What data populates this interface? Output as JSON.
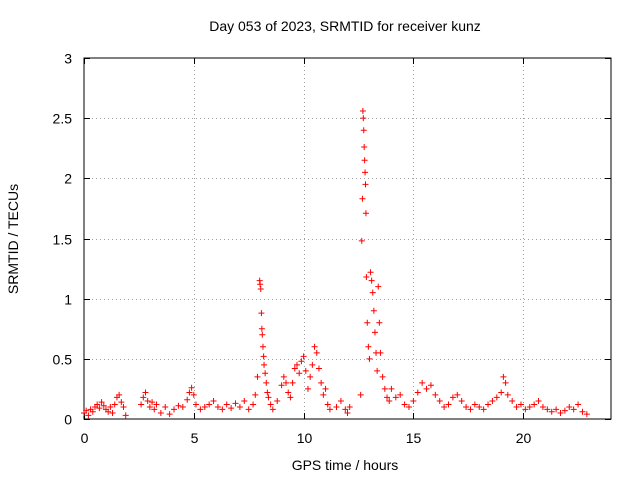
{
  "chart_data": {
    "type": "scatter",
    "title": "Day 053 of 2023, SRMTID for receiver kunz",
    "xlabel": "GPS time / hours",
    "ylabel": "SRMTID / TECUs",
    "xlim": [
      0,
      24
    ],
    "ylim": [
      0,
      3
    ],
    "xticks": [
      0,
      5,
      10,
      15,
      20
    ],
    "yticks": [
      0,
      0.5,
      1,
      1.5,
      2,
      2.5,
      3
    ],
    "xtick_labels": [
      "0",
      "5",
      "10",
      "15",
      "20"
    ],
    "ytick_labels": [
      "0",
      "0.5",
      "1",
      "1.5",
      "2",
      "2.5",
      "3"
    ],
    "grid": true,
    "marker": "+",
    "color": "#ff0000",
    "series": [
      {
        "name": "SRMTID",
        "points": [
          [
            0.0,
            0.05
          ],
          [
            0.1,
            0.07
          ],
          [
            0.2,
            0.03
          ],
          [
            0.3,
            0.08
          ],
          [
            0.4,
            0.06
          ],
          [
            0.5,
            0.1
          ],
          [
            0.6,
            0.12
          ],
          [
            0.7,
            0.09
          ],
          [
            0.8,
            0.14
          ],
          [
            0.9,
            0.11
          ],
          [
            1.0,
            0.08
          ],
          [
            1.1,
            0.06
          ],
          [
            1.2,
            0.1
          ],
          [
            1.3,
            0.05
          ],
          [
            1.4,
            0.12
          ],
          [
            1.5,
            0.18
          ],
          [
            1.6,
            0.2
          ],
          [
            1.7,
            0.14
          ],
          [
            1.8,
            0.1
          ],
          [
            1.9,
            0.03
          ],
          [
            2.6,
            0.12
          ],
          [
            2.7,
            0.18
          ],
          [
            2.8,
            0.22
          ],
          [
            2.9,
            0.15
          ],
          [
            3.0,
            0.1
          ],
          [
            3.1,
            0.14
          ],
          [
            3.2,
            0.08
          ],
          [
            3.3,
            0.12
          ],
          [
            3.5,
            0.05
          ],
          [
            3.7,
            0.1
          ],
          [
            3.9,
            0.04
          ],
          [
            4.1,
            0.08
          ],
          [
            4.3,
            0.11
          ],
          [
            4.5,
            0.1
          ],
          [
            4.7,
            0.16
          ],
          [
            4.8,
            0.22
          ],
          [
            4.9,
            0.26
          ],
          [
            5.0,
            0.2
          ],
          [
            5.1,
            0.12
          ],
          [
            5.3,
            0.08
          ],
          [
            5.5,
            0.1
          ],
          [
            5.7,
            0.12
          ],
          [
            5.9,
            0.15
          ],
          [
            6.1,
            0.1
          ],
          [
            6.3,
            0.08
          ],
          [
            6.5,
            0.12
          ],
          [
            6.7,
            0.09
          ],
          [
            6.9,
            0.13
          ],
          [
            7.1,
            0.1
          ],
          [
            7.3,
            0.15
          ],
          [
            7.5,
            0.08
          ],
          [
            7.7,
            0.12
          ],
          [
            7.8,
            0.2
          ],
          [
            7.9,
            0.35
          ],
          [
            8.0,
            1.15
          ],
          [
            8.02,
            1.12
          ],
          [
            8.05,
            1.08
          ],
          [
            8.08,
            0.88
          ],
          [
            8.1,
            0.75
          ],
          [
            8.12,
            0.7
          ],
          [
            8.15,
            0.6
          ],
          [
            8.18,
            0.52
          ],
          [
            8.2,
            0.45
          ],
          [
            8.25,
            0.38
          ],
          [
            8.3,
            0.3
          ],
          [
            8.35,
            0.22
          ],
          [
            8.4,
            0.18
          ],
          [
            8.5,
            0.12
          ],
          [
            8.6,
            0.08
          ],
          [
            8.8,
            0.15
          ],
          [
            9.0,
            0.28
          ],
          [
            9.1,
            0.35
          ],
          [
            9.2,
            0.3
          ],
          [
            9.3,
            0.22
          ],
          [
            9.4,
            0.18
          ],
          [
            9.5,
            0.3
          ],
          [
            9.6,
            0.42
          ],
          [
            9.7,
            0.45
          ],
          [
            9.8,
            0.38
          ],
          [
            9.9,
            0.48
          ],
          [
            10.0,
            0.52
          ],
          [
            10.1,
            0.4
          ],
          [
            10.2,
            0.25
          ],
          [
            10.3,
            0.35
          ],
          [
            10.4,
            0.45
          ],
          [
            10.5,
            0.6
          ],
          [
            10.6,
            0.55
          ],
          [
            10.7,
            0.42
          ],
          [
            10.8,
            0.3
          ],
          [
            10.9,
            0.2
          ],
          [
            11.0,
            0.25
          ],
          [
            11.1,
            0.12
          ],
          [
            11.2,
            0.08
          ],
          [
            11.5,
            0.1
          ],
          [
            11.7,
            0.15
          ],
          [
            11.9,
            0.08
          ],
          [
            12.0,
            0.05
          ],
          [
            12.1,
            0.1
          ],
          [
            12.6,
            0.2
          ],
          [
            12.65,
            1.48
          ],
          [
            12.68,
            1.83
          ],
          [
            12.7,
            2.56
          ],
          [
            12.72,
            2.5
          ],
          [
            12.74,
            2.4
          ],
          [
            12.76,
            2.26
          ],
          [
            12.78,
            2.15
          ],
          [
            12.8,
            2.05
          ],
          [
            12.82,
            1.95
          ],
          [
            12.84,
            1.71
          ],
          [
            12.86,
            1.18
          ],
          [
            12.9,
            0.8
          ],
          [
            12.95,
            0.6
          ],
          [
            13.0,
            0.5
          ],
          [
            13.05,
            1.22
          ],
          [
            13.1,
            1.15
          ],
          [
            13.15,
            1.05
          ],
          [
            13.2,
            0.9
          ],
          [
            13.25,
            0.72
          ],
          [
            13.3,
            0.55
          ],
          [
            13.35,
            0.4
          ],
          [
            13.4,
            1.1
          ],
          [
            13.45,
            0.8
          ],
          [
            13.5,
            0.55
          ],
          [
            13.6,
            0.35
          ],
          [
            13.7,
            0.25
          ],
          [
            13.8,
            0.18
          ],
          [
            13.9,
            0.15
          ],
          [
            14.0,
            0.25
          ],
          [
            14.2,
            0.18
          ],
          [
            14.4,
            0.2
          ],
          [
            14.6,
            0.12
          ],
          [
            14.8,
            0.1
          ],
          [
            15.0,
            0.15
          ],
          [
            15.2,
            0.22
          ],
          [
            15.4,
            0.3
          ],
          [
            15.6,
            0.25
          ],
          [
            15.8,
            0.28
          ],
          [
            16.0,
            0.2
          ],
          [
            16.2,
            0.15
          ],
          [
            16.4,
            0.1
          ],
          [
            16.6,
            0.12
          ],
          [
            16.8,
            0.18
          ],
          [
            17.0,
            0.2
          ],
          [
            17.2,
            0.15
          ],
          [
            17.4,
            0.1
          ],
          [
            17.6,
            0.08
          ],
          [
            17.8,
            0.12
          ],
          [
            18.0,
            0.1
          ],
          [
            18.2,
            0.08
          ],
          [
            18.4,
            0.12
          ],
          [
            18.6,
            0.15
          ],
          [
            18.8,
            0.18
          ],
          [
            19.0,
            0.22
          ],
          [
            19.1,
            0.35
          ],
          [
            19.2,
            0.3
          ],
          [
            19.3,
            0.2
          ],
          [
            19.5,
            0.15
          ],
          [
            19.7,
            0.1
          ],
          [
            19.9,
            0.12
          ],
          [
            20.1,
            0.08
          ],
          [
            20.3,
            0.1
          ],
          [
            20.5,
            0.12
          ],
          [
            20.7,
            0.15
          ],
          [
            20.9,
            0.1
          ],
          [
            21.1,
            0.08
          ],
          [
            21.3,
            0.06
          ],
          [
            21.5,
            0.08
          ],
          [
            21.7,
            0.05
          ],
          [
            21.9,
            0.07
          ],
          [
            22.1,
            0.1
          ],
          [
            22.3,
            0.08
          ],
          [
            22.5,
            0.12
          ],
          [
            22.7,
            0.06
          ],
          [
            22.9,
            0.04
          ]
        ]
      }
    ]
  }
}
